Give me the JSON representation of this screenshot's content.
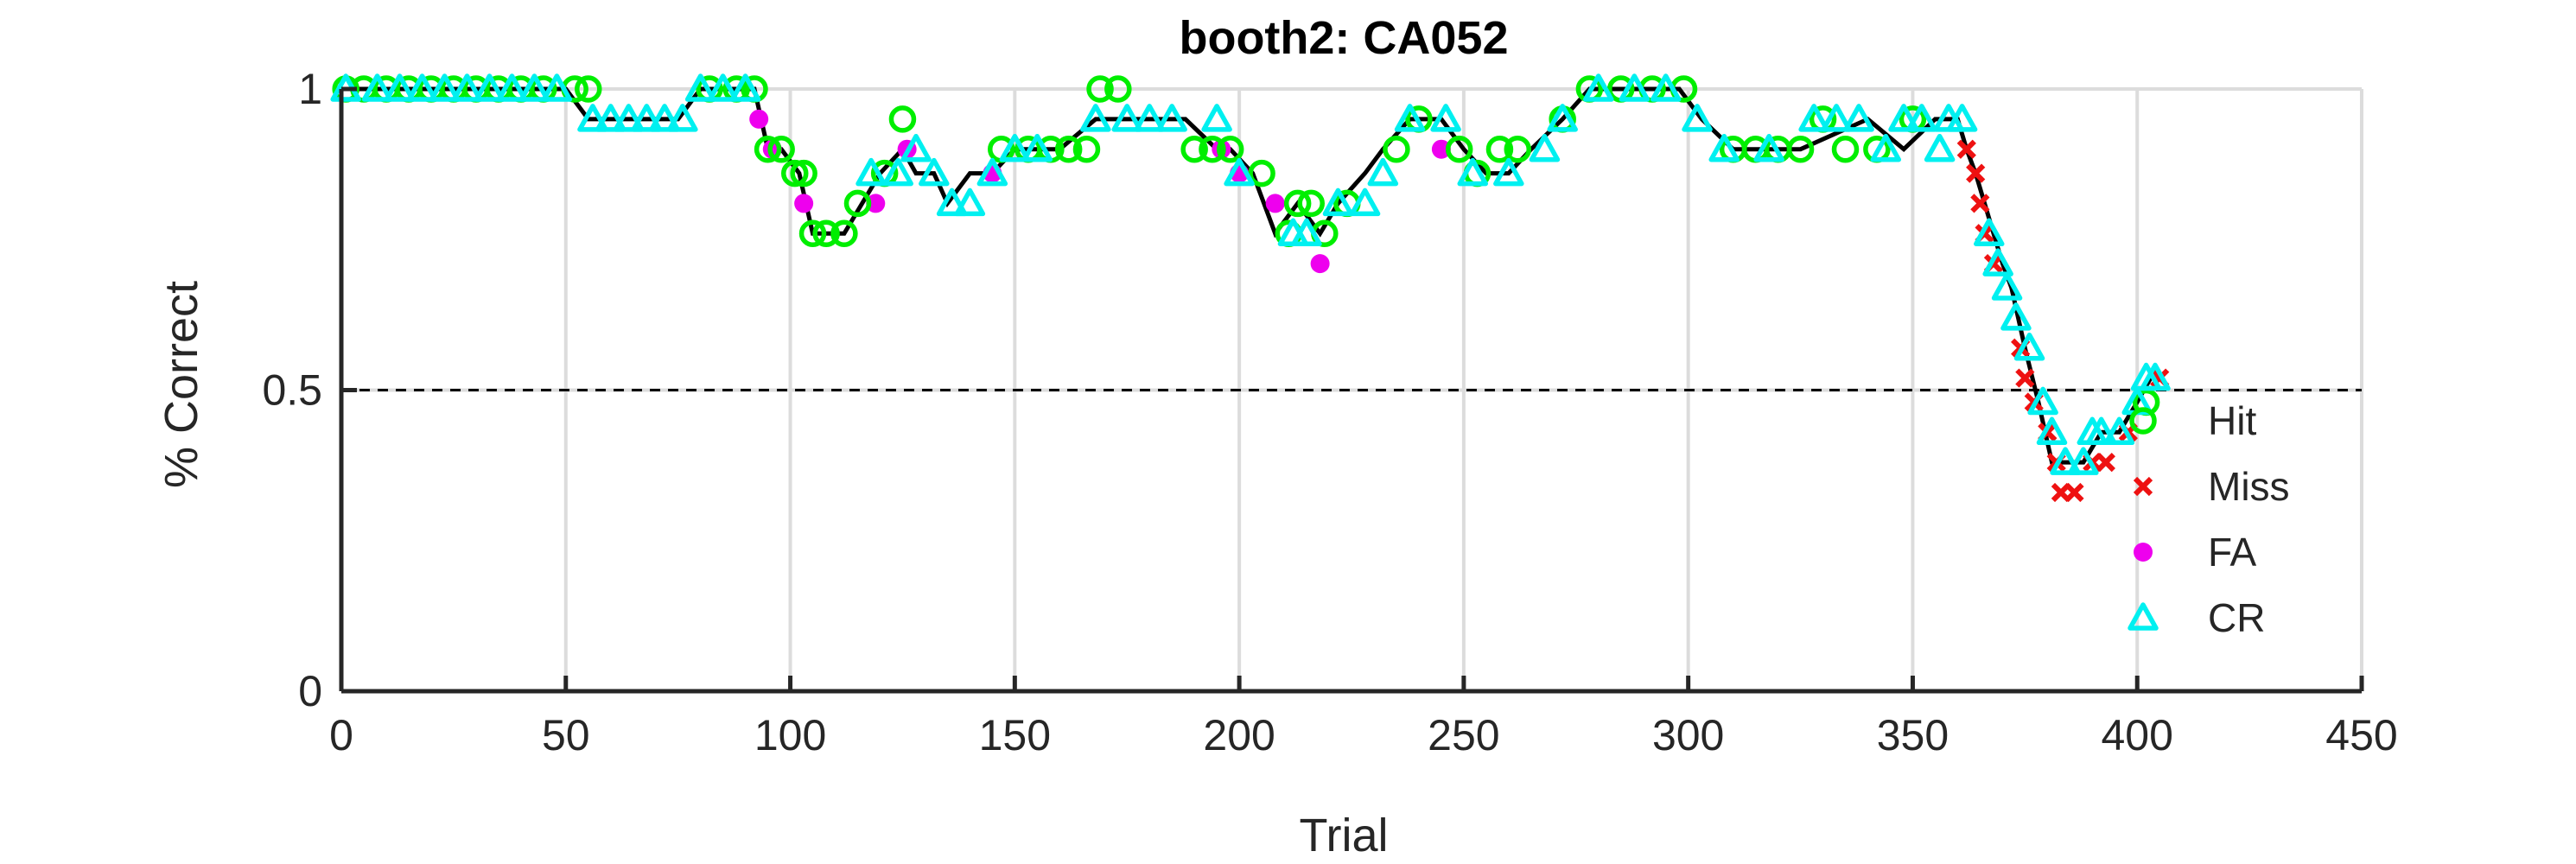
{
  "chart_data": {
    "type": "line",
    "title": "booth2: CA052",
    "xlabel": "Trial",
    "ylabel": "% Correct",
    "xlim": [
      0,
      450
    ],
    "ylim": [
      0,
      1
    ],
    "xticks": [
      0,
      50,
      100,
      150,
      200,
      250,
      300,
      350,
      400,
      450
    ],
    "yticks": [
      "0",
      "0.5",
      "1"
    ],
    "grid": true,
    "chance_level": 0.5,
    "legend_position": "right-middle",
    "colors": {
      "Hit": "#00ee00",
      "Miss": "#ee1111",
      "FA": "#ee00ee",
      "CR": "#00f0f0",
      "line": "#000000",
      "axes": "#262626",
      "grid": "#dcdcdc"
    },
    "performance_curve": {
      "x": [
        1,
        50,
        55,
        60,
        75,
        80,
        92,
        95,
        98,
        102,
        105,
        112,
        116,
        120,
        125,
        128,
        132,
        135,
        140,
        145,
        150,
        160,
        168,
        172,
        180,
        188,
        195,
        198,
        203,
        208,
        213,
        218,
        222,
        228,
        232,
        238,
        245,
        250,
        255,
        260,
        265,
        272,
        278,
        290,
        298,
        303,
        310,
        325,
        340,
        348,
        355,
        360,
        362,
        364,
        366,
        368,
        370,
        372,
        375,
        378,
        381,
        384,
        388,
        392,
        396,
        400,
        403
      ],
      "y": [
        1.0,
        1.0,
        0.95,
        0.95,
        0.95,
        1.0,
        1.0,
        0.9,
        0.9,
        0.86,
        0.76,
        0.76,
        0.81,
        0.86,
        0.9,
        0.86,
        0.86,
        0.81,
        0.86,
        0.86,
        0.9,
        0.9,
        0.95,
        0.95,
        0.95,
        0.95,
        0.9,
        0.9,
        0.86,
        0.76,
        0.81,
        0.76,
        0.81,
        0.86,
        0.9,
        0.95,
        0.95,
        0.9,
        0.86,
        0.86,
        0.9,
        0.95,
        1.0,
        1.0,
        1.0,
        0.95,
        0.9,
        0.9,
        0.95,
        0.9,
        0.95,
        0.95,
        0.9,
        0.86,
        0.81,
        0.76,
        0.71,
        0.67,
        0.57,
        0.48,
        0.38,
        0.38,
        0.38,
        0.43,
        0.43,
        0.48,
        0.52
      ]
    },
    "series": [
      {
        "name": "Hit",
        "marker": "circle",
        "points": [
          [
            1,
            1.0
          ],
          [
            5,
            1.0
          ],
          [
            10,
            1.0
          ],
          [
            15,
            1.0
          ],
          [
            20,
            1.0
          ],
          [
            25,
            1.0
          ],
          [
            30,
            1.0
          ],
          [
            35,
            1.0
          ],
          [
            40,
            1.0
          ],
          [
            45,
            1.0
          ],
          [
            52,
            1.0
          ],
          [
            55,
            1.0
          ],
          [
            82,
            1.0
          ],
          [
            88,
            1.0
          ],
          [
            92,
            1.0
          ],
          [
            95,
            0.9
          ],
          [
            98,
            0.9
          ],
          [
            101,
            0.86
          ],
          [
            103,
            0.86
          ],
          [
            105,
            0.76
          ],
          [
            108,
            0.76
          ],
          [
            112,
            0.76
          ],
          [
            115,
            0.81
          ],
          [
            121,
            0.86
          ],
          [
            125,
            0.95
          ],
          [
            147,
            0.9
          ],
          [
            153,
            0.9
          ],
          [
            158,
            0.9
          ],
          [
            162,
            0.9
          ],
          [
            166,
            0.9
          ],
          [
            169,
            1.0
          ],
          [
            173,
            1.0
          ],
          [
            190,
            0.9
          ],
          [
            194,
            0.9
          ],
          [
            198,
            0.9
          ],
          [
            205,
            0.86
          ],
          [
            211,
            0.76
          ],
          [
            213,
            0.81
          ],
          [
            216,
            0.81
          ],
          [
            219,
            0.76
          ],
          [
            224,
            0.81
          ],
          [
            235,
            0.9
          ],
          [
            240,
            0.95
          ],
          [
            249,
            0.9
          ],
          [
            253,
            0.86
          ],
          [
            258,
            0.9
          ],
          [
            262,
            0.9
          ],
          [
            272,
            0.95
          ],
          [
            278,
            1.0
          ],
          [
            285,
            1.0
          ],
          [
            292,
            1.0
          ],
          [
            299,
            1.0
          ],
          [
            310,
            0.9
          ],
          [
            315,
            0.9
          ],
          [
            320,
            0.9
          ],
          [
            325,
            0.9
          ],
          [
            330,
            0.95
          ],
          [
            335,
            0.9
          ],
          [
            342,
            0.9
          ],
          [
            350,
            0.95
          ],
          [
            402,
            0.48
          ]
        ]
      },
      {
        "name": "Miss",
        "marker": "x",
        "points": [
          [
            362,
            0.9
          ],
          [
            364,
            0.86
          ],
          [
            365,
            0.81
          ],
          [
            366,
            0.76
          ],
          [
            368,
            0.71
          ],
          [
            374,
            0.57
          ],
          [
            375,
            0.52
          ],
          [
            377,
            0.48
          ],
          [
            380,
            0.43
          ],
          [
            382,
            0.38
          ],
          [
            383,
            0.33
          ],
          [
            386,
            0.33
          ],
          [
            390,
            0.38
          ],
          [
            393,
            0.38
          ],
          [
            398,
            0.43
          ],
          [
            405,
            0.52
          ]
        ]
      },
      {
        "name": "FA",
        "marker": "dot",
        "points": [
          [
            93,
            0.95
          ],
          [
            96,
            0.9
          ],
          [
            103,
            0.81
          ],
          [
            119,
            0.81
          ],
          [
            126,
            0.9
          ],
          [
            145,
            0.86
          ],
          [
            196,
            0.9
          ],
          [
            200,
            0.86
          ],
          [
            208,
            0.81
          ],
          [
            218,
            0.71
          ],
          [
            245,
            0.9
          ]
        ]
      },
      {
        "name": "CR",
        "marker": "triangle",
        "points": [
          [
            1,
            1.0
          ],
          [
            8,
            1.0
          ],
          [
            13,
            1.0
          ],
          [
            18,
            1.0
          ],
          [
            23,
            1.0
          ],
          [
            28,
            1.0
          ],
          [
            33,
            1.0
          ],
          [
            38,
            1.0
          ],
          [
            43,
            1.0
          ],
          [
            48,
            1.0
          ],
          [
            56,
            0.95
          ],
          [
            60,
            0.95
          ],
          [
            64,
            0.95
          ],
          [
            68,
            0.95
          ],
          [
            72,
            0.95
          ],
          [
            76,
            0.95
          ],
          [
            80,
            1.0
          ],
          [
            85,
            1.0
          ],
          [
            90,
            1.0
          ],
          [
            118,
            0.86
          ],
          [
            124,
            0.86
          ],
          [
            128,
            0.9
          ],
          [
            132,
            0.86
          ],
          [
            136,
            0.81
          ],
          [
            140,
            0.81
          ],
          [
            145,
            0.86
          ],
          [
            150,
            0.9
          ],
          [
            155,
            0.9
          ],
          [
            168,
            0.95
          ],
          [
            175,
            0.95
          ],
          [
            180,
            0.95
          ],
          [
            185,
            0.95
          ],
          [
            195,
            0.95
          ],
          [
            200,
            0.86
          ],
          [
            212,
            0.76
          ],
          [
            215,
            0.76
          ],
          [
            222,
            0.81
          ],
          [
            228,
            0.81
          ],
          [
            232,
            0.86
          ],
          [
            238,
            0.95
          ],
          [
            246,
            0.95
          ],
          [
            252,
            0.86
          ],
          [
            260,
            0.86
          ],
          [
            268,
            0.9
          ],
          [
            272,
            0.95
          ],
          [
            280,
            1.0
          ],
          [
            288,
            1.0
          ],
          [
            295,
            1.0
          ],
          [
            302,
            0.95
          ],
          [
            308,
            0.9
          ],
          [
            318,
            0.9
          ],
          [
            328,
            0.95
          ],
          [
            333,
            0.95
          ],
          [
            338,
            0.95
          ],
          [
            344,
            0.9
          ],
          [
            348,
            0.95
          ],
          [
            352,
            0.95
          ],
          [
            356,
            0.9
          ],
          [
            358,
            0.95
          ],
          [
            361,
            0.95
          ],
          [
            367,
            0.76
          ],
          [
            369,
            0.71
          ],
          [
            371,
            0.67
          ],
          [
            373,
            0.62
          ],
          [
            376,
            0.57
          ],
          [
            379,
            0.48
          ],
          [
            381,
            0.43
          ],
          [
            384,
            0.38
          ],
          [
            388,
            0.38
          ],
          [
            390,
            0.43
          ],
          [
            392,
            0.43
          ],
          [
            396,
            0.43
          ],
          [
            400,
            0.48
          ],
          [
            402,
            0.52
          ],
          [
            404,
            0.52
          ]
        ]
      }
    ]
  }
}
